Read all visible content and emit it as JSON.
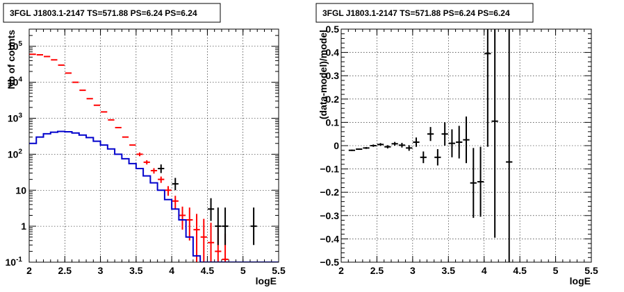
{
  "chart_data": [
    {
      "type": "line",
      "title": "3FGL J1803.1-2147 TS=571.88 PS=6.24 PS=6.24",
      "xlabel": "logE",
      "ylabel": "Nb of counts",
      "xlim": [
        2,
        5.5
      ],
      "ylim": [
        0.1,
        300000
      ],
      "yscale": "log",
      "grid": true,
      "x_ticks": [
        "2",
        "2.5",
        "3",
        "3.5",
        "4",
        "4.5",
        "5",
        "5.5"
      ],
      "y_ticks": [
        {
          "base": "10",
          "exp": "-1"
        },
        {
          "base": "1",
          "exp": ""
        },
        {
          "base": "10",
          "exp": ""
        },
        {
          "base": "10",
          "exp": "2"
        },
        {
          "base": "10",
          "exp": "3"
        },
        {
          "base": "10",
          "exp": "4"
        },
        {
          "base": "10",
          "exp": "5"
        }
      ],
      "series": [
        {
          "color": "#ff0000",
          "style": "errorbars",
          "x": [
            2.05,
            2.15,
            2.25,
            2.35,
            2.45,
            2.55,
            2.65,
            2.75,
            2.85,
            2.95,
            3.05,
            3.15,
            3.25,
            3.35,
            3.45,
            3.55,
            3.65,
            3.75,
            3.85,
            3.95,
            4.05,
            4.15,
            4.25,
            4.35,
            4.45,
            4.55,
            4.65,
            4.75
          ],
          "y": [
            60000,
            58000,
            52000,
            42000,
            30000,
            18000,
            10000,
            6000,
            3500,
            2300,
            1500,
            900,
            550,
            300,
            180,
            100,
            60,
            35,
            20,
            10,
            5,
            2,
            1.5,
            0.8,
            0.5,
            0.35,
            0.2,
            0.12
          ],
          "yerr_low": [
            0,
            0,
            0,
            0,
            0,
            0,
            0,
            0,
            0,
            0,
            0,
            0,
            0,
            0,
            0,
            12,
            8,
            6,
            4,
            3,
            2,
            1.2,
            1.1,
            0.7,
            0.45,
            0.33,
            0.19,
            0.11
          ],
          "yerr_high": [
            0,
            0,
            0,
            0,
            0,
            0,
            0,
            0,
            0,
            0,
            0,
            0,
            0,
            0,
            0,
            12,
            8,
            6,
            4,
            3,
            2,
            1.5,
            1.8,
            1.4,
            1.1,
            0.9,
            0.7,
            0.5
          ]
        },
        {
          "color": "#0000cc",
          "style": "step",
          "edges": [
            2.0,
            2.1,
            2.2,
            2.3,
            2.4,
            2.5,
            2.6,
            2.7,
            2.8,
            2.9,
            3.0,
            3.1,
            3.2,
            3.3,
            3.4,
            3.5,
            3.6,
            3.7,
            3.8,
            3.9,
            4.0,
            4.1,
            4.2,
            4.3,
            4.4,
            4.5,
            4.6,
            4.7,
            4.8,
            4.9,
            5.0,
            5.1,
            5.2,
            5.3,
            5.4,
            5.5
          ],
          "values": [
            200,
            300,
            370,
            410,
            430,
            420,
            390,
            340,
            290,
            230,
            180,
            140,
            100,
            75,
            55,
            40,
            25,
            16,
            10,
            5.5,
            3,
            1.5,
            0.5,
            0.15,
            0.08,
            0.05,
            0.05,
            0.05,
            0.05,
            0.05,
            0.05,
            0.05,
            0.05,
            0.05,
            0.05
          ]
        },
        {
          "color": "#000000",
          "style": "errorbars",
          "x": [
            3.85,
            4.05,
            4.55,
            4.65,
            4.75,
            5.15
          ],
          "y": [
            40,
            15,
            3,
            1,
            1,
            1
          ],
          "yerr_low": [
            10,
            5,
            1.6,
            0.7,
            0.7,
            0.7
          ],
          "yerr_high": [
            12,
            7,
            3,
            2.3,
            2.3,
            2.3
          ]
        }
      ]
    },
    {
      "type": "scatter",
      "title": "3FGL J1803.1-2147 TS=571.88 PS=6.24 PS=6.24",
      "xlabel": "logE",
      "ylabel": "(data-model)/model",
      "xlim": [
        2,
        5.5
      ],
      "ylim": [
        -0.5,
        0.5
      ],
      "grid": true,
      "x_ticks": [
        "2",
        "2.5",
        "3",
        "3.5",
        "4",
        "4.5",
        "5",
        "5.5"
      ],
      "y_ticks": [
        "−0.5",
        "−0.4",
        "−0.3",
        "−0.2",
        "−0.1",
        "0",
        "0.1",
        "0.2",
        "0.3",
        "0.4",
        "0.5"
      ],
      "series": [
        {
          "color": "#000000",
          "x": [
            2.15,
            2.25,
            2.35,
            2.45,
            2.55,
            2.65,
            2.75,
            2.85,
            2.95,
            3.05,
            3.15,
            3.25,
            3.35,
            3.45,
            3.55,
            3.65,
            3.75,
            3.85,
            3.95,
            4.05,
            4.15,
            4.35
          ],
          "y": [
            -0.02,
            -0.015,
            -0.01,
            0.0,
            0.005,
            -0.005,
            0.008,
            0.002,
            -0.01,
            0.015,
            -0.05,
            0.05,
            -0.05,
            0.05,
            0.01,
            0.015,
            0.025,
            -0.16,
            -0.155,
            0.395,
            0.105,
            -0.07
          ],
          "yerr": [
            0.003,
            0.003,
            0.004,
            0.005,
            0.006,
            0.007,
            0.008,
            0.01,
            0.012,
            0.02,
            0.025,
            0.03,
            0.035,
            0.05,
            0.06,
            0.07,
            0.1,
            0.15,
            0.15,
            0.4,
            0.5,
            0.6
          ]
        }
      ]
    }
  ]
}
